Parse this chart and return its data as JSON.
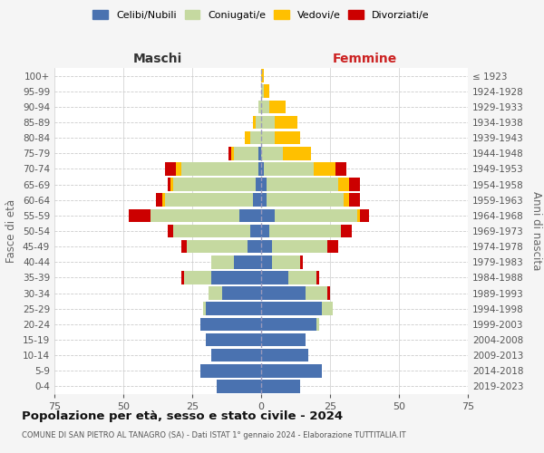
{
  "age_groups_bottom_to_top": [
    "0-4",
    "5-9",
    "10-14",
    "15-19",
    "20-24",
    "25-29",
    "30-34",
    "35-39",
    "40-44",
    "45-49",
    "50-54",
    "55-59",
    "60-64",
    "65-69",
    "70-74",
    "75-79",
    "80-84",
    "85-89",
    "90-94",
    "95-99",
    "100+"
  ],
  "birth_years_bottom_to_top": [
    "2019-2023",
    "2014-2018",
    "2009-2013",
    "2004-2008",
    "1999-2003",
    "1994-1998",
    "1989-1993",
    "1984-1988",
    "1979-1983",
    "1974-1978",
    "1969-1973",
    "1964-1968",
    "1959-1963",
    "1954-1958",
    "1949-1953",
    "1944-1948",
    "1939-1943",
    "1934-1938",
    "1929-1933",
    "1924-1928",
    "≤ 1923"
  ],
  "males": {
    "celibe": [
      16,
      22,
      18,
      20,
      22,
      20,
      14,
      18,
      10,
      5,
      4,
      8,
      3,
      2,
      1,
      1,
      0,
      0,
      0,
      0,
      0
    ],
    "coniugato": [
      0,
      0,
      0,
      0,
      0,
      1,
      5,
      10,
      8,
      22,
      28,
      32,
      32,
      30,
      28,
      9,
      4,
      2,
      1,
      0,
      0
    ],
    "vedovo": [
      0,
      0,
      0,
      0,
      0,
      0,
      0,
      0,
      0,
      0,
      0,
      0,
      1,
      1,
      2,
      1,
      2,
      1,
      0,
      0,
      0
    ],
    "divorziato": [
      0,
      0,
      0,
      0,
      0,
      0,
      0,
      1,
      0,
      2,
      2,
      8,
      2,
      1,
      4,
      1,
      0,
      0,
      0,
      0,
      0
    ]
  },
  "females": {
    "nubile": [
      14,
      22,
      17,
      16,
      20,
      22,
      16,
      10,
      4,
      4,
      3,
      5,
      2,
      2,
      1,
      0,
      0,
      0,
      0,
      0,
      0
    ],
    "coniugata": [
      0,
      0,
      0,
      0,
      1,
      4,
      8,
      10,
      10,
      20,
      26,
      30,
      28,
      26,
      18,
      8,
      5,
      5,
      3,
      1,
      0
    ],
    "vedova": [
      0,
      0,
      0,
      0,
      0,
      0,
      0,
      0,
      0,
      0,
      0,
      1,
      2,
      4,
      8,
      10,
      9,
      8,
      6,
      2,
      1
    ],
    "divorziata": [
      0,
      0,
      0,
      0,
      0,
      0,
      1,
      1,
      1,
      4,
      4,
      3,
      4,
      4,
      4,
      0,
      0,
      0,
      0,
      0,
      0
    ]
  },
  "colors": {
    "celibe": "#4a72b0",
    "coniugato": "#c5d9a0",
    "vedovo": "#ffc000",
    "divorziato": "#cc0000"
  },
  "xlim": 75,
  "title": "Popolazione per età, sesso e stato civile - 2024",
  "subtitle": "COMUNE DI SAN PIETRO AL TANAGRO (SA) - Dati ISTAT 1° gennaio 2024 - Elaborazione TUTTITALIA.IT",
  "ylabel": "Fasce di età",
  "ylabel_right": "Anni di nascita",
  "xlabel_left": "Maschi",
  "xlabel_right": "Femmine",
  "legend_labels": [
    "Celibi/Nubili",
    "Coniugati/e",
    "Vedovi/e",
    "Divorziati/e"
  ],
  "bg_color": "#f5f5f5",
  "plot_bg_color": "#ffffff"
}
